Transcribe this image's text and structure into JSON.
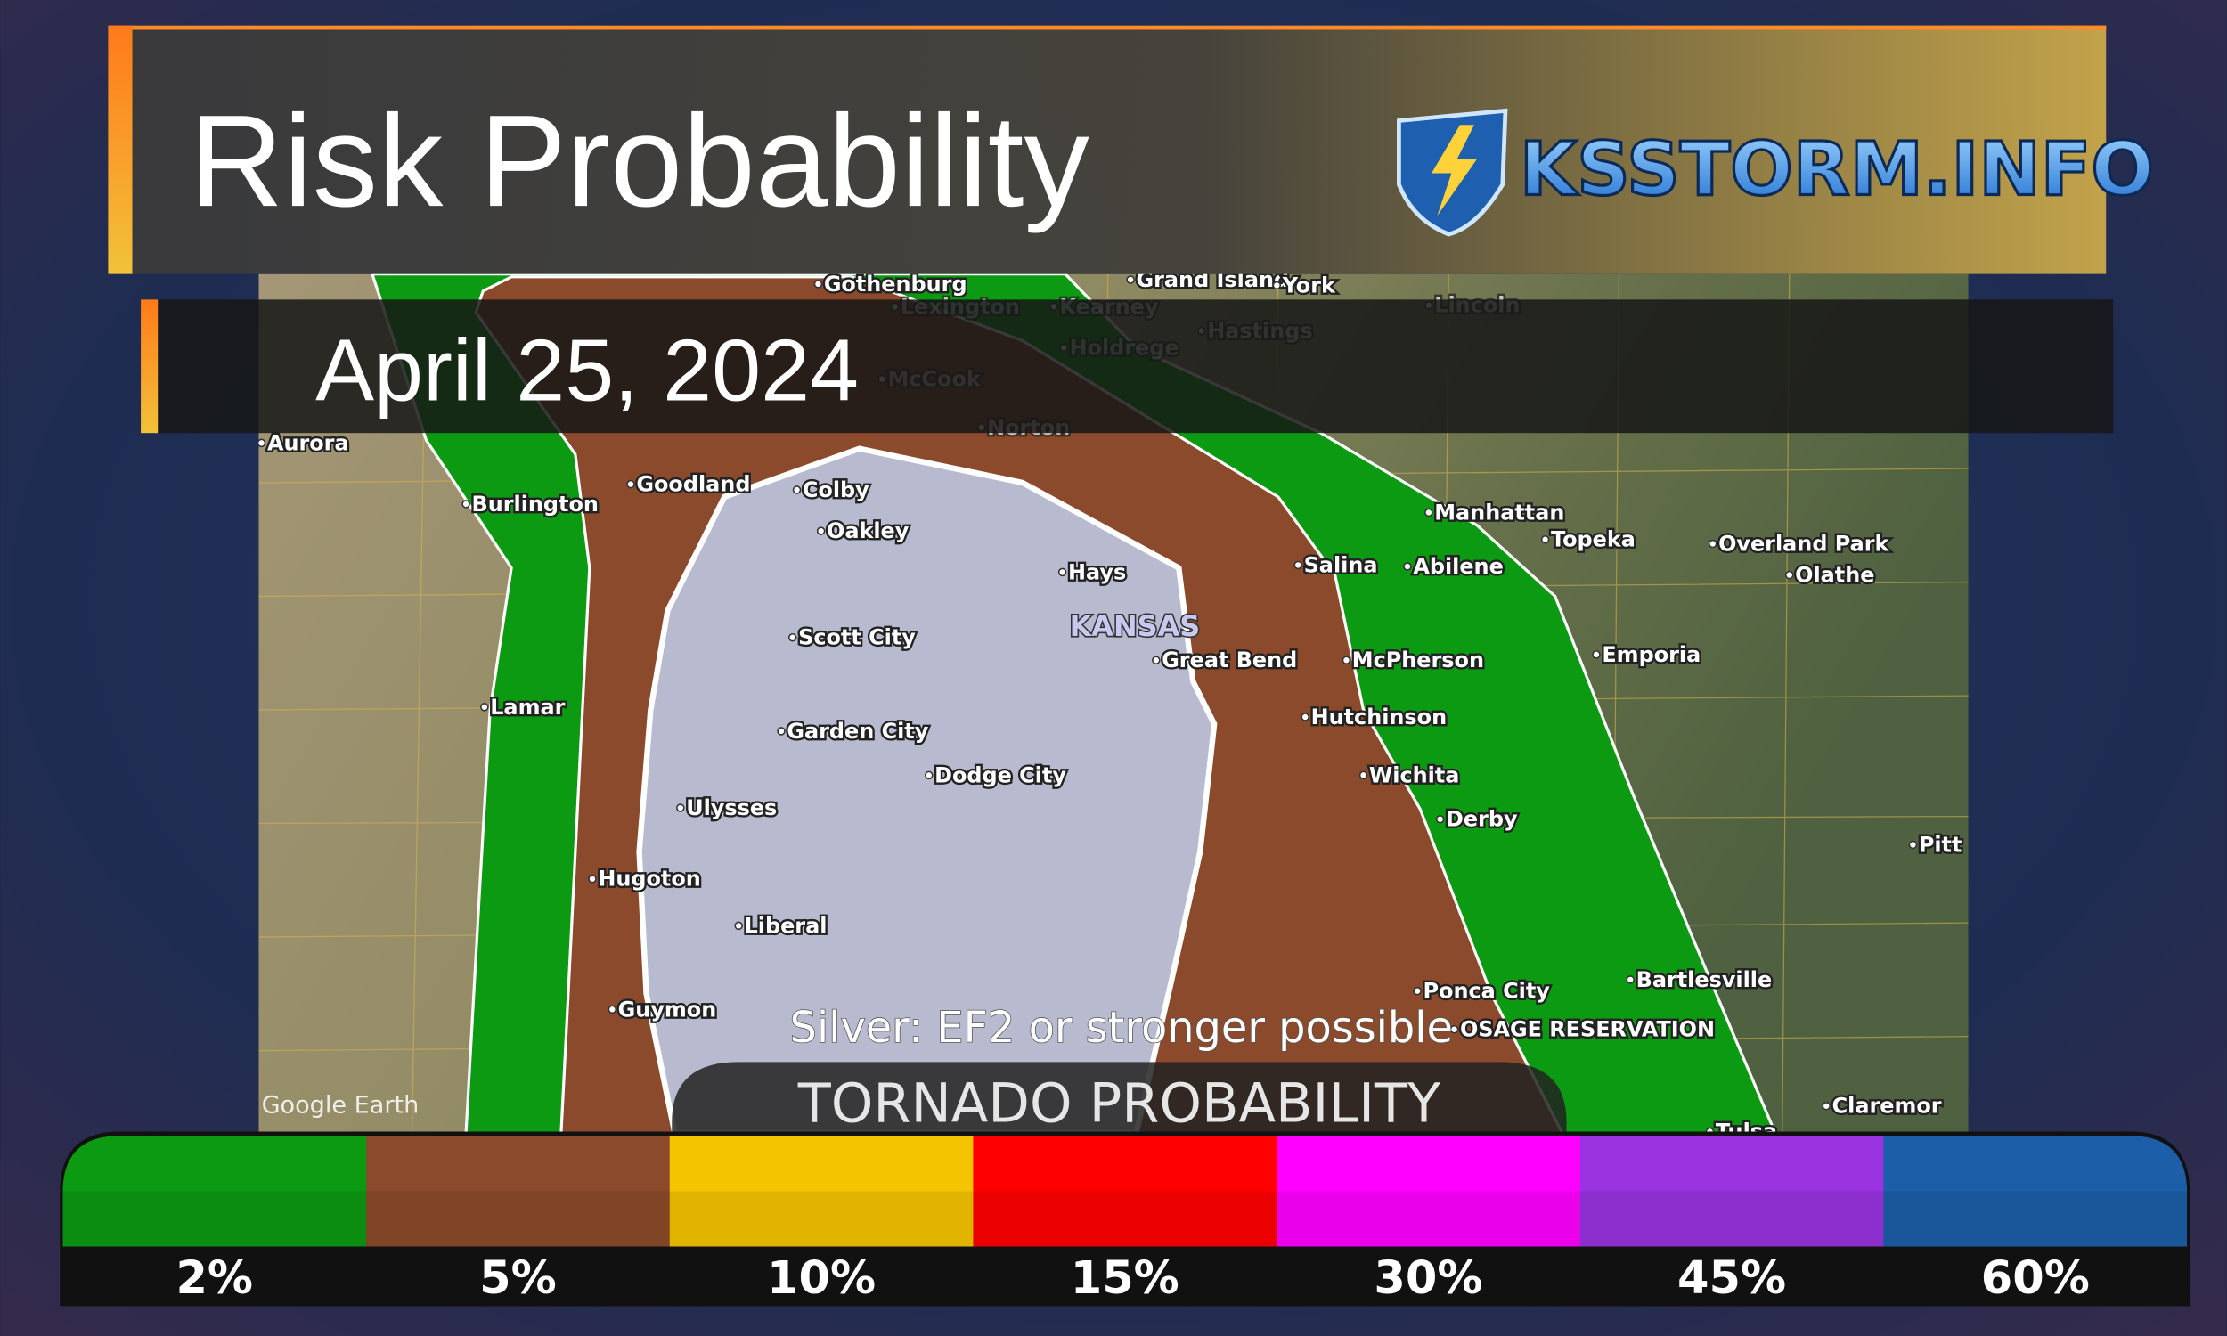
{
  "header": {
    "title": "Risk Probability",
    "logo": "KSSTORM.INFO",
    "date": "April 25, 2024"
  },
  "map": {
    "note": "Silver: EF2 or stronger possible",
    "state": "KANSAS",
    "credit": "Google Earth",
    "places": [
      "Goodland",
      "Colby",
      "Oakley",
      "Burlington",
      "Hays",
      "Scott City",
      "Great Bend",
      "McPherson",
      "Salina",
      "Abilene",
      "Manhattan",
      "Topeka",
      "Overland Park",
      "Olathe",
      "Emporia",
      "Hutchinson",
      "Wichita",
      "Derby",
      "Garden City",
      "Dodge City",
      "Ulysses",
      "Lamar",
      "Hugoton",
      "Liberal",
      "Guymon",
      "Ponca City",
      "Bartlesville",
      "OSAGE RESERVATION",
      "Aurora",
      "McCook",
      "Norton",
      "Holdrege",
      "Hastings",
      "Gothenburg",
      "Lexington",
      "Kearney",
      "Grand Island",
      "York",
      "Lincoln",
      "Pitt",
      "Claremor",
      "Tulsa"
    ]
  },
  "legend": {
    "title": "TORNADO PROBABILITY",
    "items": [
      {
        "label": "2%",
        "color": "#0b9a12"
      },
      {
        "label": "5%",
        "color": "#8b4a2b"
      },
      {
        "label": "10%",
        "color": "#f5c400"
      },
      {
        "label": "15%",
        "color": "#ff0000"
      },
      {
        "label": "30%",
        "color": "#ff00ff"
      },
      {
        "label": "45%",
        "color": "#9a33e0"
      },
      {
        "label": "60%",
        "color": "#1c5ea8"
      }
    ]
  }
}
